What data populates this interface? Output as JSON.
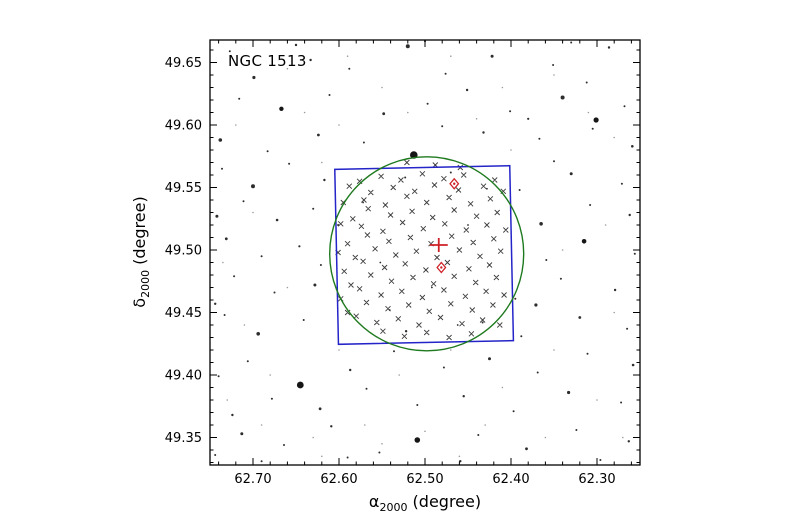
{
  "figure": {
    "title": "NGC 1513",
    "xlabel": {
      "symbol": "α",
      "sub": "2000",
      "rest": " (degree)"
    },
    "ylabel": {
      "symbol": "δ",
      "sub": "2000",
      "rest": " (degree)"
    }
  },
  "colors": {
    "frame": "#000000",
    "field_star": "#161616",
    "faint_star": "#9b9b9b",
    "member_marker": "#2d2d2d",
    "circle": "#1f7a1f",
    "square": "#2424c8",
    "red": "#ce2127"
  },
  "chart_data": {
    "type": "scatter",
    "title": "NGC 1513",
    "xlabel": "α2000 (degree)",
    "ylabel": "δ2000 (degree)",
    "x_axis": {
      "left_value": 62.75,
      "right_value": 62.25,
      "inverted": true,
      "tick_labels": [
        "62.70",
        "62.60",
        "62.50",
        "62.40",
        "62.30"
      ],
      "minor_step": 0.02
    },
    "y_axis": {
      "top_value": 49.668,
      "bottom_value": 49.328,
      "tick_labels": [
        "49.65",
        "49.60",
        "49.55",
        "49.50",
        "49.45",
        "49.40",
        "49.35"
      ],
      "minor_step": 0.01
    },
    "cluster_center_cross": {
      "ra": 62.484,
      "dec": 49.504
    },
    "cluster_radius_circle": {
      "ra": 62.498,
      "dec": 49.497,
      "radius_deg": 0.0776
    },
    "survey_field_square": {
      "ra": 62.501,
      "dec": 49.496,
      "size_deg": 0.14,
      "rotation_deg": -1.2
    },
    "flagged_stars_diamonds": [
      {
        "ra": 62.466,
        "dec": 49.553
      },
      {
        "ra": 62.481,
        "dec": 49.486
      }
    ],
    "member_stars": [
      [
        62.455,
        49.56
      ],
      [
        62.478,
        49.557
      ],
      [
        62.503,
        49.561
      ],
      [
        62.528,
        49.556
      ],
      [
        62.551,
        49.559
      ],
      [
        62.419,
        49.556
      ],
      [
        62.576,
        49.555
      ],
      [
        62.432,
        49.551
      ],
      [
        62.461,
        49.548
      ],
      [
        62.489,
        49.552
      ],
      [
        62.512,
        49.547
      ],
      [
        62.537,
        49.55
      ],
      [
        62.563,
        49.546
      ],
      [
        62.588,
        49.551
      ],
      [
        62.409,
        49.547
      ],
      [
        62.424,
        49.541
      ],
      [
        62.447,
        49.537
      ],
      [
        62.472,
        49.542
      ],
      [
        62.498,
        49.538
      ],
      [
        62.521,
        49.543
      ],
      [
        62.546,
        49.536
      ],
      [
        62.571,
        49.54
      ],
      [
        62.595,
        49.538
      ],
      [
        62.416,
        49.53
      ],
      [
        62.44,
        49.527
      ],
      [
        62.466,
        49.532
      ],
      [
        62.491,
        49.526
      ],
      [
        62.515,
        49.531
      ],
      [
        62.54,
        49.528
      ],
      [
        62.566,
        49.533
      ],
      [
        62.584,
        49.525
      ],
      [
        62.428,
        49.52
      ],
      [
        62.452,
        49.516
      ],
      [
        62.477,
        49.521
      ],
      [
        62.502,
        49.517
      ],
      [
        62.526,
        49.522
      ],
      [
        62.549,
        49.515
      ],
      [
        62.574,
        49.519
      ],
      [
        62.598,
        49.521
      ],
      [
        62.406,
        49.516
      ],
      [
        62.42,
        49.509
      ],
      [
        62.444,
        49.506
      ],
      [
        62.469,
        49.511
      ],
      [
        62.493,
        49.505
      ],
      [
        62.517,
        49.51
      ],
      [
        62.542,
        49.507
      ],
      [
        62.567,
        49.512
      ],
      [
        62.59,
        49.505
      ],
      [
        62.412,
        49.499
      ],
      [
        62.436,
        49.495
      ],
      [
        62.46,
        49.5
      ],
      [
        62.486,
        49.494
      ],
      [
        62.51,
        49.499
      ],
      [
        62.534,
        49.496
      ],
      [
        62.558,
        49.501
      ],
      [
        62.581,
        49.494
      ],
      [
        62.601,
        49.498
      ],
      [
        62.425,
        49.488
      ],
      [
        62.449,
        49.485
      ],
      [
        62.474,
        49.49
      ],
      [
        62.499,
        49.484
      ],
      [
        62.523,
        49.489
      ],
      [
        62.547,
        49.486
      ],
      [
        62.572,
        49.491
      ],
      [
        62.594,
        49.483
      ],
      [
        62.417,
        49.478
      ],
      [
        62.441,
        49.474
      ],
      [
        62.466,
        49.479
      ],
      [
        62.49,
        49.473
      ],
      [
        62.514,
        49.478
      ],
      [
        62.539,
        49.475
      ],
      [
        62.563,
        49.48
      ],
      [
        62.586,
        49.472
      ],
      [
        62.429,
        49.467
      ],
      [
        62.453,
        49.463
      ],
      [
        62.478,
        49.468
      ],
      [
        62.503,
        49.462
      ],
      [
        62.527,
        49.467
      ],
      [
        62.551,
        49.464
      ],
      [
        62.576,
        49.469
      ],
      [
        62.598,
        49.461
      ],
      [
        62.408,
        49.464
      ],
      [
        62.421,
        49.456
      ],
      [
        62.445,
        49.452
      ],
      [
        62.47,
        49.457
      ],
      [
        62.495,
        49.451
      ],
      [
        62.519,
        49.456
      ],
      [
        62.543,
        49.453
      ],
      [
        62.568,
        49.458
      ],
      [
        62.59,
        49.45
      ],
      [
        62.433,
        49.444
      ],
      [
        62.457,
        49.441
      ],
      [
        62.482,
        49.446
      ],
      [
        62.507,
        49.44
      ],
      [
        62.531,
        49.445
      ],
      [
        62.556,
        49.442
      ],
      [
        62.58,
        49.447
      ],
      [
        62.413,
        49.44
      ],
      [
        62.446,
        49.433
      ],
      [
        62.472,
        49.43
      ],
      [
        62.498,
        49.434
      ],
      [
        62.524,
        49.431
      ],
      [
        62.549,
        49.435
      ],
      [
        62.488,
        49.568
      ],
      [
        62.521,
        49.57
      ],
      [
        62.459,
        49.566
      ]
    ],
    "field_stars": [
      [
        62.286,
        49.662,
        1.2
      ],
      [
        62.351,
        49.648,
        1.0
      ],
      [
        62.422,
        49.655,
        1.5
      ],
      [
        62.476,
        49.641,
        1.0
      ],
      [
        62.52,
        49.663,
        2.0
      ],
      [
        62.588,
        49.645,
        1.0
      ],
      [
        62.633,
        49.652,
        1.2
      ],
      [
        62.699,
        49.638,
        1.6
      ],
      [
        62.727,
        49.659,
        1.0
      ],
      [
        62.312,
        49.634,
        1.0
      ],
      [
        62.268,
        49.615,
        1.0
      ],
      [
        62.34,
        49.622,
        2.0
      ],
      [
        62.401,
        49.611,
        1.0
      ],
      [
        62.451,
        49.628,
        1.2
      ],
      [
        62.497,
        49.617,
        1.0
      ],
      [
        62.548,
        49.609,
        1.4
      ],
      [
        62.611,
        49.624,
        1.0
      ],
      [
        62.667,
        49.613,
        2.2
      ],
      [
        62.716,
        49.621,
        1.0
      ],
      [
        62.38,
        49.605,
        1.1
      ],
      [
        62.259,
        49.583,
        1.3
      ],
      [
        62.305,
        49.597,
        1.0
      ],
      [
        62.301,
        49.604,
        2.6
      ],
      [
        62.367,
        49.589,
        1.0
      ],
      [
        62.432,
        49.594,
        1.2
      ],
      [
        62.513,
        49.576,
        3.8
      ],
      [
        62.571,
        49.586,
        1.0
      ],
      [
        62.624,
        49.592,
        1.4
      ],
      [
        62.683,
        49.579,
        1.0
      ],
      [
        62.738,
        49.588,
        1.8
      ],
      [
        62.48,
        49.599,
        1.0
      ],
      [
        62.271,
        49.553,
        1.0
      ],
      [
        62.33,
        49.561,
        1.5
      ],
      [
        62.39,
        49.548,
        1.0
      ],
      [
        62.617,
        49.556,
        1.2
      ],
      [
        62.658,
        49.569,
        1.0
      ],
      [
        62.7,
        49.551,
        2.0
      ],
      [
        62.736,
        49.565,
        1.0
      ],
      [
        62.35,
        49.571,
        1.0
      ],
      [
        62.47,
        49.562,
        1.0
      ],
      [
        62.523,
        49.558,
        1.0
      ],
      [
        62.262,
        49.528,
        1.2
      ],
      [
        62.308,
        49.536,
        1.0
      ],
      [
        62.365,
        49.521,
        1.8
      ],
      [
        62.63,
        49.533,
        1.0
      ],
      [
        62.672,
        49.524,
        1.3
      ],
      [
        62.711,
        49.539,
        1.0
      ],
      [
        62.742,
        49.527,
        1.5
      ],
      [
        62.601,
        49.52,
        1.0
      ],
      [
        62.256,
        49.497,
        1.0
      ],
      [
        62.315,
        49.507,
        2.3
      ],
      [
        62.359,
        49.492,
        1.0
      ],
      [
        62.646,
        49.503,
        1.1
      ],
      [
        62.69,
        49.495,
        1.0
      ],
      [
        62.731,
        49.509,
        1.4
      ],
      [
        62.621,
        49.488,
        1.0
      ],
      [
        62.279,
        49.468,
        1.2
      ],
      [
        62.342,
        49.477,
        1.0
      ],
      [
        62.395,
        49.461,
        1.0
      ],
      [
        62.628,
        49.472,
        1.5
      ],
      [
        62.675,
        49.466,
        1.0
      ],
      [
        62.722,
        49.479,
        1.0
      ],
      [
        62.744,
        49.457,
        1.2
      ],
      [
        62.371,
        49.456,
        1.6
      ],
      [
        62.265,
        49.437,
        1.0
      ],
      [
        62.32,
        49.446,
        1.4
      ],
      [
        62.388,
        49.431,
        1.0
      ],
      [
        62.433,
        49.442,
        1.0
      ],
      [
        62.522,
        49.435,
        1.2
      ],
      [
        62.641,
        49.444,
        1.0
      ],
      [
        62.694,
        49.433,
        1.8
      ],
      [
        62.733,
        49.448,
        1.0
      ],
      [
        62.258,
        49.408,
        1.3
      ],
      [
        62.311,
        49.417,
        1.0
      ],
      [
        62.369,
        49.402,
        1.0
      ],
      [
        62.425,
        49.413,
        1.5
      ],
      [
        62.478,
        49.406,
        1.0
      ],
      [
        62.536,
        49.419,
        1.0
      ],
      [
        62.587,
        49.404,
        1.2
      ],
      [
        62.645,
        49.392,
        3.4
      ],
      [
        62.706,
        49.411,
        1.0
      ],
      [
        62.74,
        49.399,
        1.0
      ],
      [
        62.272,
        49.378,
        1.0
      ],
      [
        62.333,
        49.386,
        1.6
      ],
      [
        62.397,
        49.371,
        1.0
      ],
      [
        62.455,
        49.383,
        1.2
      ],
      [
        62.509,
        49.376,
        1.0
      ],
      [
        62.568,
        49.389,
        1.0
      ],
      [
        62.622,
        49.373,
        1.4
      ],
      [
        62.678,
        49.381,
        1.0
      ],
      [
        62.724,
        49.368,
        1.2
      ],
      [
        62.263,
        49.347,
        1.2
      ],
      [
        62.324,
        49.356,
        1.0
      ],
      [
        62.382,
        49.341,
        1.4
      ],
      [
        62.438,
        49.352,
        1.0
      ],
      [
        62.509,
        49.348,
        2.8
      ],
      [
        62.553,
        49.338,
        1.0
      ],
      [
        62.609,
        49.359,
        1.2
      ],
      [
        62.664,
        49.344,
        1.0
      ],
      [
        62.713,
        49.353,
        1.5
      ],
      [
        62.744,
        49.336,
        1.0
      ],
      [
        62.296,
        49.332,
        1.0
      ],
      [
        62.459,
        49.331,
        1.2
      ],
      [
        62.59,
        49.334,
        1.0
      ],
      [
        62.69,
        49.331,
        1.0
      ],
      [
        62.5,
        49.667,
        1.0
      ],
      [
        62.65,
        49.664,
        1.2
      ],
      [
        62.33,
        49.666,
        1.0
      ],
      [
        62.45,
        49.52,
        0.9
      ],
      [
        62.492,
        49.47,
        0.9
      ],
      [
        62.552,
        49.49,
        0.9
      ],
      [
        62.428,
        49.549,
        0.9
      ],
      [
        62.572,
        49.538,
        0.9
      ],
      [
        62.462,
        49.44,
        0.9
      ],
      [
        62.541,
        49.452,
        0.9
      ]
    ],
    "faint_stars": [
      [
        62.28,
        49.59
      ],
      [
        62.35,
        49.64
      ],
      [
        62.41,
        49.63
      ],
      [
        62.47,
        49.655
      ],
      [
        62.55,
        49.63
      ],
      [
        62.6,
        49.6
      ],
      [
        62.66,
        49.645
      ],
      [
        62.72,
        49.6
      ],
      [
        62.29,
        49.52
      ],
      [
        62.34,
        49.5
      ],
      [
        62.4,
        49.58
      ],
      [
        62.62,
        49.57
      ],
      [
        62.7,
        49.53
      ],
      [
        62.735,
        49.49
      ],
      [
        62.28,
        49.45
      ],
      [
        62.35,
        49.42
      ],
      [
        62.41,
        49.39
      ],
      [
        62.47,
        49.42
      ],
      [
        62.53,
        49.4
      ],
      [
        62.6,
        49.42
      ],
      [
        62.66,
        49.47
      ],
      [
        62.71,
        49.44
      ],
      [
        62.73,
        49.38
      ],
      [
        62.3,
        49.38
      ],
      [
        62.36,
        49.35
      ],
      [
        62.43,
        49.36
      ],
      [
        62.5,
        49.355
      ],
      [
        62.57,
        49.36
      ],
      [
        62.63,
        49.35
      ],
      [
        62.69,
        49.36
      ],
      [
        62.31,
        49.61
      ],
      [
        62.44,
        49.605
      ],
      [
        62.52,
        49.61
      ],
      [
        62.59,
        49.655
      ],
      [
        62.64,
        49.61
      ],
      [
        62.27,
        49.35
      ],
      [
        62.46,
        49.335
      ],
      [
        62.55,
        49.345
      ],
      [
        62.62,
        49.335
      ],
      [
        62.68,
        49.4
      ]
    ]
  }
}
